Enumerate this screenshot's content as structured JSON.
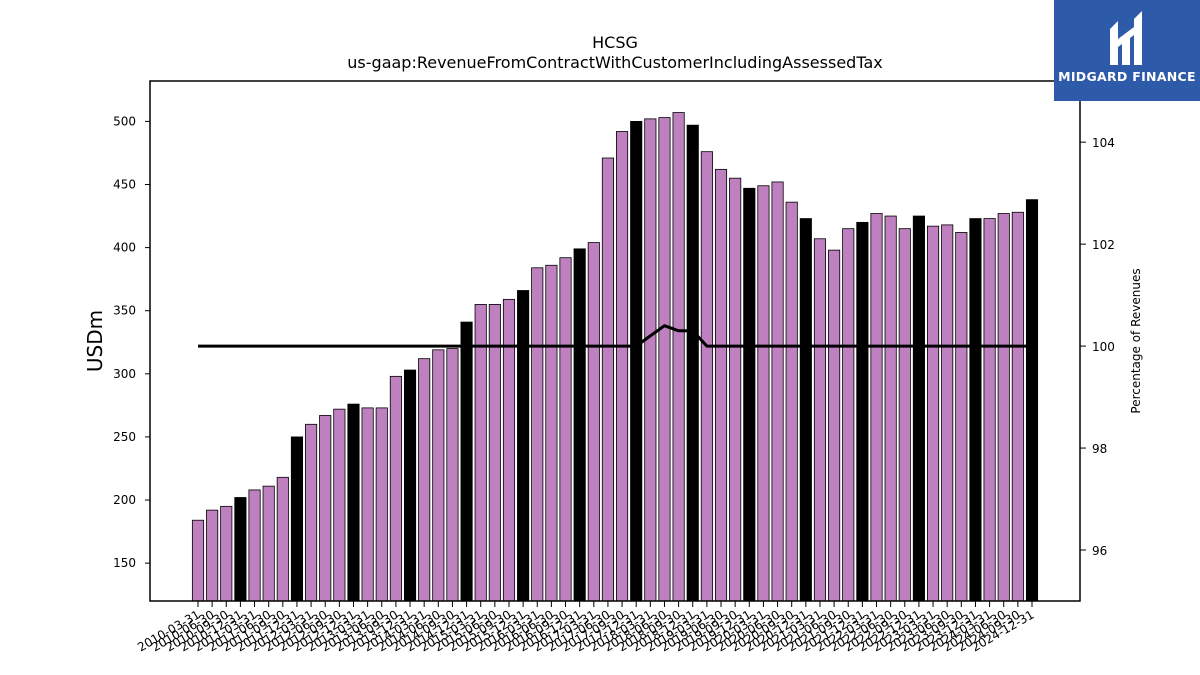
{
  "chart_data": {
    "type": "bar",
    "title": "HCSG",
    "subtitle": "us-gaap:RevenueFromContractWithCustomerIncludingAssessedTax",
    "ylabel": "USDm",
    "y2label": "Percentage of Revenues",
    "ylim": [
      120,
      532
    ],
    "y2lim": [
      95.0,
      105.2
    ],
    "yticks": [
      150,
      200,
      250,
      300,
      350,
      400,
      450,
      500
    ],
    "y2ticks": [
      96,
      98,
      100,
      102,
      104
    ],
    "categories": [
      "2010-03-31",
      "2010-06-30",
      "2010-09-30",
      "2010-12-31",
      "2011-03-31",
      "2011-06-30",
      "2011-09-30",
      "2011-12-31",
      "2012-03-31",
      "2012-06-30",
      "2012-09-30",
      "2012-12-31",
      "2013-03-31",
      "2013-06-30",
      "2013-09-30",
      "2013-12-31",
      "2014-03-31",
      "2014-06-30",
      "2014-09-30",
      "2014-12-31",
      "2015-03-31",
      "2015-06-30",
      "2015-09-30",
      "2015-12-31",
      "2016-03-31",
      "2016-06-30",
      "2016-09-30",
      "2016-12-31",
      "2017-03-31",
      "2017-06-30",
      "2017-09-30",
      "2017-12-31",
      "2018-03-31",
      "2018-06-30",
      "2018-09-30",
      "2018-12-31",
      "2019-03-31",
      "2019-06-30",
      "2019-09-30",
      "2019-12-31",
      "2020-03-31",
      "2020-06-30",
      "2020-09-30",
      "2020-12-31",
      "2021-03-31",
      "2021-06-30",
      "2021-09-30",
      "2021-12-31",
      "2022-03-31",
      "2022-06-30",
      "2022-09-30",
      "2022-12-31",
      "2023-03-31",
      "2023-06-30",
      "2023-09-30",
      "2023-12-31",
      "2024-03-31",
      "2024-06-30",
      "2024-09-30",
      "2024-12-31"
    ],
    "series": [
      {
        "kind": "bar",
        "values": [
          184,
          192,
          195,
          202,
          208,
          211,
          218,
          250,
          260,
          267,
          272,
          276,
          273,
          273,
          298,
          303,
          312,
          319,
          320,
          341,
          355,
          355,
          359,
          366,
          384,
          386,
          392,
          399,
          404,
          471,
          492,
          500,
          502,
          503,
          507,
          497,
          476,
          462,
          455,
          447,
          449,
          452,
          436,
          423,
          407,
          398,
          415,
          420,
          427,
          425,
          415,
          425,
          417,
          418,
          412,
          423,
          423,
          427,
          428,
          438
        ],
        "colors": [
          "#bf80bf",
          "#bf80bf",
          "#bf80bf",
          "#000000",
          "#bf80bf",
          "#bf80bf",
          "#bf80bf",
          "#000000",
          "#bf80bf",
          "#bf80bf",
          "#bf80bf",
          "#000000",
          "#bf80bf",
          "#bf80bf",
          "#bf80bf",
          "#000000",
          "#bf80bf",
          "#bf80bf",
          "#bf80bf",
          "#000000",
          "#bf80bf",
          "#bf80bf",
          "#bf80bf",
          "#000000",
          "#bf80bf",
          "#bf80bf",
          "#bf80bf",
          "#000000",
          "#bf80bf",
          "#bf80bf",
          "#bf80bf",
          "#000000",
          "#bf80bf",
          "#bf80bf",
          "#bf80bf",
          "#000000",
          "#bf80bf",
          "#bf80bf",
          "#bf80bf",
          "#000000",
          "#bf80bf",
          "#bf80bf",
          "#bf80bf",
          "#000000",
          "#bf80bf",
          "#bf80bf",
          "#bf80bf",
          "#000000",
          "#bf80bf",
          "#bf80bf",
          "#bf80bf",
          "#000000",
          "#bf80bf",
          "#bf80bf",
          "#bf80bf",
          "#000000",
          "#bf80bf",
          "#bf80bf",
          "#bf80bf",
          "#000000"
        ]
      },
      {
        "kind": "line",
        "axis": "right",
        "color": "#000000",
        "values": [
          100,
          100,
          100,
          100,
          100,
          100,
          100,
          100,
          100,
          100,
          100,
          100,
          100,
          100,
          100,
          100,
          100,
          100,
          100,
          100,
          100,
          100,
          100,
          100,
          100,
          100,
          100,
          100,
          100,
          100,
          100,
          100,
          100.2,
          100.4,
          100.3,
          100.3,
          100,
          100,
          100,
          100,
          100,
          100,
          100,
          100,
          100,
          100,
          100,
          100,
          100,
          100,
          100,
          100,
          100,
          100,
          100,
          100,
          100,
          100,
          100,
          100
        ]
      }
    ],
    "grid": false,
    "legend": "none"
  },
  "brand": {
    "name": "MIDGARD FINANCE",
    "background": "#2d5aa9",
    "logo_icon": "midgard-logo-icon"
  }
}
